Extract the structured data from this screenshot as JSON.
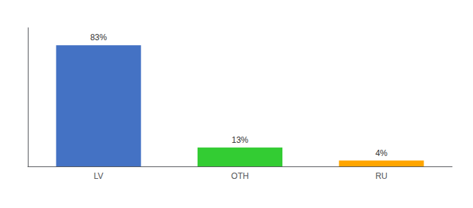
{
  "chart_data": {
    "type": "bar",
    "categories": [
      "LV",
      "OTH",
      "RU"
    ],
    "values": [
      83,
      13,
      4
    ],
    "value_labels": [
      "83%",
      "13%",
      "4%"
    ],
    "data_labels": true,
    "colors": [
      "#4472C4",
      "#33CC33",
      "#FFA500"
    ],
    "ylim": [
      0,
      95
    ],
    "tick_labels": "x",
    "grid": false
  }
}
